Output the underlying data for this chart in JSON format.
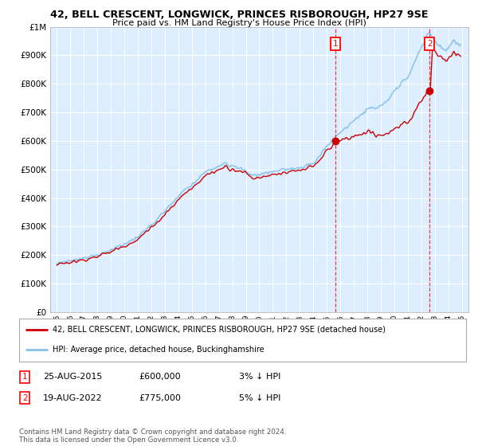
{
  "title1": "42, BELL CRESCENT, LONGWICK, PRINCES RISBOROUGH, HP27 9SE",
  "title2": "Price paid vs. HM Land Registry's House Price Index (HPI)",
  "ylim": [
    0,
    1000000
  ],
  "yticks": [
    0,
    100000,
    200000,
    300000,
    400000,
    500000,
    600000,
    700000,
    800000,
    900000,
    1000000
  ],
  "ytick_labels": [
    "£0",
    "£100K",
    "£200K",
    "£300K",
    "£400K",
    "£500K",
    "£600K",
    "£700K",
    "£800K",
    "£900K",
    "£1M"
  ],
  "hpi_color": "#85c1e9",
  "price_color": "#cc0000",
  "plot_bg": "#ddeeff",
  "grid_color": "#ffffff",
  "marker1_year": 2015.63,
  "marker1_price": 600000,
  "marker1_label": "1",
  "marker2_year": 2022.63,
  "marker2_price": 775000,
  "marker2_label": "2",
  "legend_line1": "42, BELL CRESCENT, LONGWICK, PRINCES RISBOROUGH, HP27 9SE (detached house)",
  "legend_line2": "HPI: Average price, detached house, Buckinghamshire",
  "annotation1_date": "25-AUG-2015",
  "annotation1_price": "£600,000",
  "annotation1_hpi": "3% ↓ HPI",
  "annotation2_date": "19-AUG-2022",
  "annotation2_price": "£775,000",
  "annotation2_hpi": "5% ↓ HPI",
  "footnote": "Contains HM Land Registry data © Crown copyright and database right 2024.\nThis data is licensed under the Open Government Licence v3.0."
}
